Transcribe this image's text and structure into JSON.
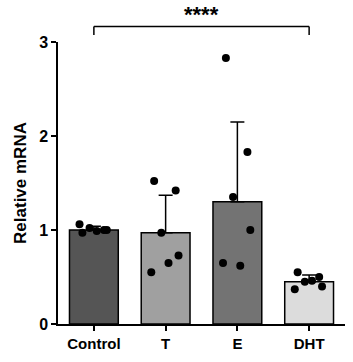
{
  "chart_data": {
    "type": "bar",
    "y_label": "Relative mRNA",
    "categories": [
      "Control",
      "T",
      "E",
      "DHT"
    ],
    "values": [
      1.0,
      0.97,
      1.3,
      0.45
    ],
    "error": [
      0.04,
      0.4,
      0.85,
      0.07
    ],
    "points": [
      [
        0.97,
        1.0,
        1.02,
        1.0,
        1.06,
        0.99
      ],
      [
        1.52,
        1.42,
        0.97,
        0.73,
        0.55,
        0.65
      ],
      [
        2.83,
        1.83,
        1.35,
        1.0,
        0.65,
        0.62
      ],
      [
        0.55,
        0.5,
        0.45,
        0.4,
        0.37,
        0.46
      ]
    ],
    "colors": [
      "#555555",
      "#a0a0a0",
      "#737373",
      "#dcdcdc"
    ],
    "ylim": [
      0,
      3
    ],
    "yticks": [
      0,
      1,
      2,
      3
    ],
    "grid": false,
    "annotations": [
      {
        "text": "****",
        "from": "Control",
        "to": "DHT"
      }
    ]
  }
}
